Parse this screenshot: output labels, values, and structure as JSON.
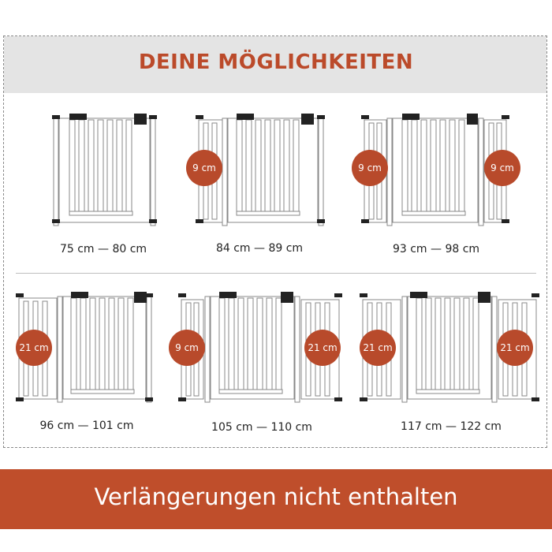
{
  "header": {
    "title": "DEINE MÖGLICHKEITEN"
  },
  "options": [
    {
      "size": "75 cm — 80 cm",
      "extensions": []
    },
    {
      "size": "84 cm — 89 cm",
      "extensions": [
        "9 cm"
      ]
    },
    {
      "size": "93 cm — 98 cm",
      "extensions": [
        "9 cm",
        "9 cm"
      ]
    },
    {
      "size": "96 cm — 101 cm",
      "extensions": [
        "21 cm"
      ]
    },
    {
      "size": "105 cm — 110 cm",
      "extensions": [
        "9 cm",
        "21 cm"
      ]
    },
    {
      "size": "117 cm — 122 cm",
      "extensions": [
        "21 cm",
        "21 cm"
      ]
    }
  ],
  "footer": {
    "text": "Verlängerungen nicht enthalten"
  },
  "colors": {
    "accent": "#bf4e2b",
    "title_band": "#e4e4e4",
    "gate": "#ffffff"
  }
}
